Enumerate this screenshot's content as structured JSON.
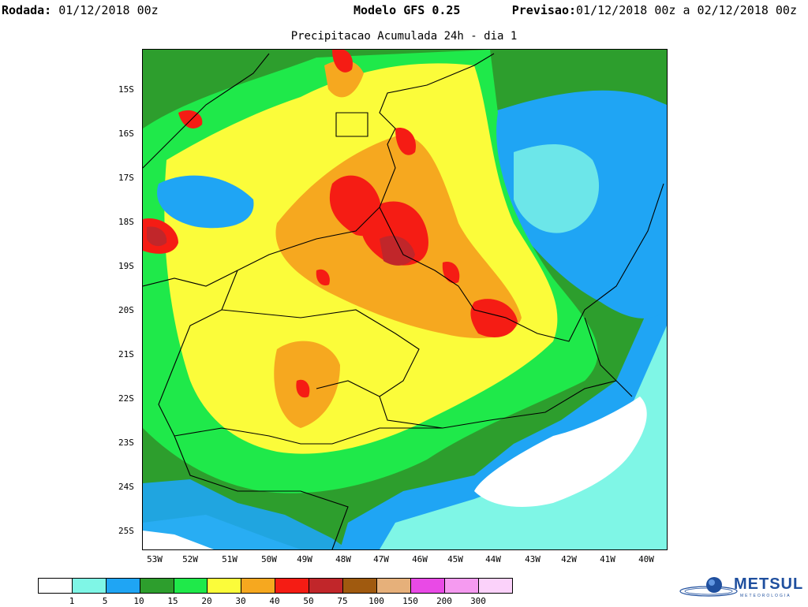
{
  "header": {
    "rodada_label": "Rodada:",
    "rodada_value": "01/12/2018 00z",
    "model_label": "Modelo GFS 0.25",
    "previsao_label": "Previsao:",
    "previsao_value": "01/12/2018 00z a 02/12/2018 00z"
  },
  "subtitle": "Precipitacao Acumulada 24h - dia 1",
  "axes": {
    "lat_labels": [
      "15S",
      "16S",
      "17S",
      "18S",
      "19S",
      "20S",
      "21S",
      "22S",
      "23S",
      "24S",
      "25S"
    ],
    "lon_labels": [
      "53W",
      "52W",
      "51W",
      "50W",
      "49W",
      "48W",
      "47W",
      "46W",
      "45W",
      "44W",
      "43W",
      "42W",
      "41W",
      "40W"
    ]
  },
  "legend": {
    "colors": [
      "#ffffff",
      "#7ff6e6",
      "#1fa5f4",
      "#2d9e2d",
      "#1fe94a",
      "#fbfc3a",
      "#f6a81f",
      "#f51c14",
      "#c1262a",
      "#a05a0f",
      "#e6b07a",
      "#e94ae6",
      "#f59af0",
      "#fbd2fa"
    ],
    "values": [
      "1",
      "5",
      "10",
      "15",
      "20",
      "30",
      "40",
      "50",
      "75",
      "100",
      "150",
      "200",
      "300"
    ]
  },
  "logo": {
    "name": "METSUL",
    "subtitle": "METEOROLOGIA"
  }
}
